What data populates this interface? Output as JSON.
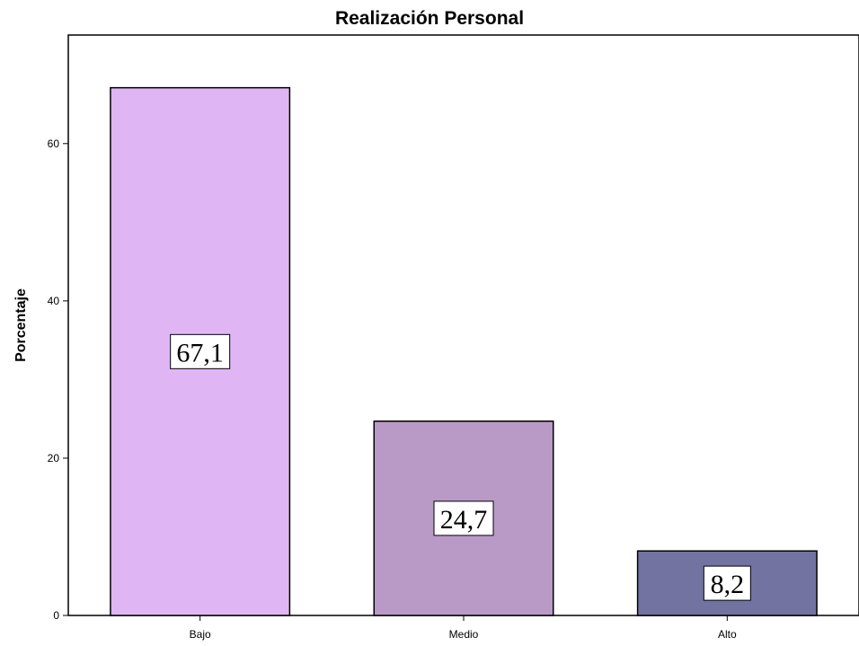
{
  "chart_data": {
    "type": "bar",
    "title": "Realización Personal",
    "xlabel": "",
    "ylabel": "Porcentaje",
    "categories": [
      "Bajo",
      "Medio",
      "Alto"
    ],
    "values": [
      67.1,
      24.7,
      8.2
    ],
    "data_labels": [
      "67,1",
      "24,7",
      "8,2"
    ],
    "colors": [
      "#dfb6f3",
      "#b99ac7",
      "#7373a1"
    ],
    "ylim": [
      0,
      73.8
    ],
    "yticks": [
      0,
      20,
      40,
      60
    ],
    "grid": false,
    "legend": "none"
  }
}
